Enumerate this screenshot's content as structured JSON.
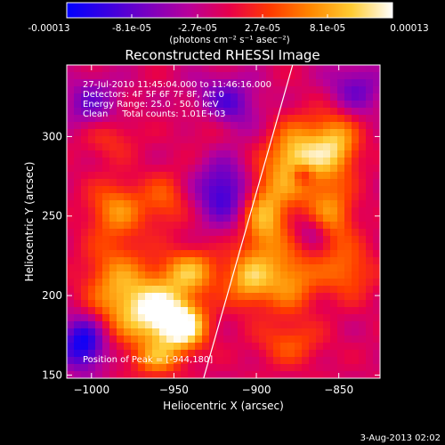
{
  "colorbar": {
    "tick_labels": [
      "-0.00013",
      "-8.1e-05",
      "-2.7e-05",
      "2.7e-05",
      "8.1e-05",
      "0.00013"
    ],
    "units_text": "(photons cm⁻² s⁻¹ asec⁻²)",
    "gradient": [
      "#0000ff",
      "#3a00e0",
      "#7a00c0",
      "#b8009a",
      "#e8004a",
      "#ff3a00",
      "#ff8800",
      "#ffcc33",
      "#ffffff"
    ]
  },
  "chart_data": {
    "type": "heatmap",
    "title": "Reconstructed RHESSI Image",
    "xlabel": "Heliocentric X (arcsec)",
    "ylabel": "Heliocentric Y (arcsec)",
    "xlim": [
      -1015,
      -825
    ],
    "ylim": [
      148,
      345
    ],
    "x_ticks": [
      -1000,
      -950,
      -900,
      -850
    ],
    "y_ticks": [
      150,
      200,
      250,
      300
    ],
    "zlim": [
      -0.00013,
      0.00013
    ],
    "limb_line": [
      [
        -932,
        148
      ],
      [
        -878,
        345
      ]
    ],
    "blobs": [
      {
        "x": -960,
        "y": 190,
        "amp": 0.00013,
        "sx": 14,
        "sy": 14
      },
      {
        "x": -944,
        "y": 180,
        "amp": 0.00012,
        "sx": 10,
        "sy": 10
      },
      {
        "x": -940,
        "y": 215,
        "amp": 9e-05,
        "sx": 12,
        "sy": 10
      },
      {
        "x": -985,
        "y": 205,
        "amp": 8e-05,
        "sx": 14,
        "sy": 22
      },
      {
        "x": -985,
        "y": 255,
        "amp": 7e-05,
        "sx": 12,
        "sy": 12
      },
      {
        "x": -955,
        "y": 260,
        "amp": 5e-05,
        "sx": 10,
        "sy": 12
      },
      {
        "x": -905,
        "y": 210,
        "amp": 9e-05,
        "sx": 10,
        "sy": 12
      },
      {
        "x": -880,
        "y": 210,
        "amp": 8e-05,
        "sx": 12,
        "sy": 14
      },
      {
        "x": -895,
        "y": 250,
        "amp": 0.0001,
        "sx": 10,
        "sy": 18
      },
      {
        "x": -875,
        "y": 285,
        "amp": 0.00012,
        "sx": 12,
        "sy": 16
      },
      {
        "x": -852,
        "y": 295,
        "amp": 0.0001,
        "sx": 10,
        "sy": 14
      },
      {
        "x": -855,
        "y": 250,
        "amp": 8e-05,
        "sx": 10,
        "sy": 14
      },
      {
        "x": -845,
        "y": 215,
        "amp": 6e-05,
        "sx": 12,
        "sy": 12
      },
      {
        "x": -960,
        "y": 160,
        "amp": 7e-05,
        "sx": 10,
        "sy": 8
      },
      {
        "x": -930,
        "y": 310,
        "amp": 4e-05,
        "sx": 10,
        "sy": 10
      },
      {
        "x": -990,
        "y": 300,
        "amp": 4e-05,
        "sx": 12,
        "sy": 10
      },
      {
        "x": -880,
        "y": 170,
        "amp": 5e-05,
        "sx": 14,
        "sy": 10
      },
      {
        "x": -920,
        "y": 265,
        "amp": -9e-05,
        "sx": 12,
        "sy": 14
      },
      {
        "x": -1005,
        "y": 170,
        "amp": -0.00012,
        "sx": 10,
        "sy": 12
      },
      {
        "x": -920,
        "y": 320,
        "amp": -8e-05,
        "sx": 14,
        "sy": 12
      },
      {
        "x": -1000,
        "y": 320,
        "amp": -6e-05,
        "sx": 12,
        "sy": 12
      },
      {
        "x": -840,
        "y": 330,
        "amp": -6e-05,
        "sx": 12,
        "sy": 12
      },
      {
        "x": -865,
        "y": 240,
        "amp": -5e-05,
        "sx": 8,
        "sy": 8
      },
      {
        "x": -872,
        "y": 276,
        "amp": -7e-05,
        "sx": 5,
        "sy": 5
      }
    ]
  },
  "info": {
    "line1": "27-Jul-2010 11:45:04.000 to 11:46:16.000",
    "line2": "Detectors: 4F 5F 6F 7F 8F, Att 0",
    "line3": "Energy Range: 25.0 - 50.0 keV",
    "line4": "Clean     Total counts: 1.01E+03",
    "peak": "Position of Peak = [-944,180]"
  },
  "footer_date": "3-Aug-2013 02:02"
}
